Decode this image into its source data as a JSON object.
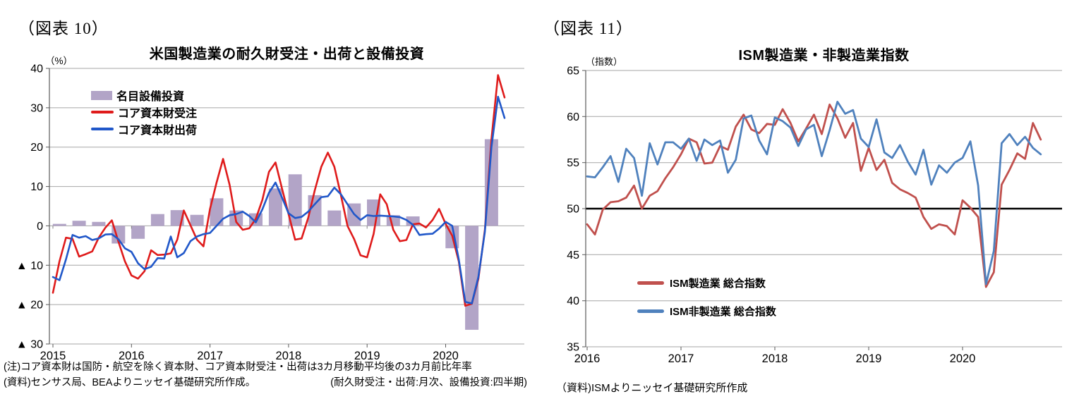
{
  "figure10": {
    "label": "（図表 10）",
    "note": "(注)コア資本財は国防・航空を除く資本財、コア資本財受注・出荷は3カ月移動平均後の3カ月前比年率",
    "source": "(資料)センサス局、BEAよりニッセイ基礎研究所作成。",
    "freq_note": "(耐久財受注・出荷:月次、設備投資:四半期)"
  },
  "figure11": {
    "label": "（図表 11）",
    "source": "（資料)ISMよりニッセイ基礎研究所作成"
  },
  "chart_data": [
    {
      "id": "us-durable-goods-capex",
      "type": "bar+line",
      "title": "米国製造業の耐久財受注・出荷と設備投資",
      "unit": "（%）",
      "ylim": [
        -30,
        40
      ],
      "y_tick_labels": [
        "40",
        "30",
        "20",
        "10",
        "0",
        "▲ 10",
        "▲ 20",
        "▲ 30"
      ],
      "x_tick_labels": [
        "2015",
        "2016",
        "2017",
        "2018",
        "2019",
        "2020"
      ],
      "x_start": "2015-01",
      "x_end": "2020-10",
      "grid": true,
      "legend_position": "upper-left-inside",
      "bars": {
        "name": "名目設備投資",
        "frequency": "quarterly",
        "color": "#b2a4c7",
        "values": [
          0.5,
          1.3,
          1.0,
          -4.5,
          -3.3,
          3.0,
          4.0,
          2.8,
          7.0,
          3.9,
          3.2,
          9.5,
          13.1,
          7.8,
          3.9,
          5.7,
          6.7,
          2.7,
          2.4,
          0.0,
          -5.7,
          -26.4,
          22.0
        ]
      },
      "series": [
        {
          "name": "コア資本財受注",
          "frequency": "monthly",
          "color": "#df1b1b",
          "values": [
            -17.0,
            -9.0,
            -3.0,
            -3.3,
            -7.8,
            -7.2,
            -6.5,
            -3.0,
            -0.5,
            1.4,
            -4.0,
            -9.0,
            -12.6,
            -13.4,
            -11.5,
            -6.2,
            -7.4,
            -7.3,
            -7.0,
            -3.5,
            3.9,
            0.2,
            -3.5,
            -5.2,
            4.3,
            11.0,
            17.0,
            10.4,
            1.0,
            -1.0,
            -0.6,
            1.8,
            6.6,
            13.7,
            16.1,
            9.5,
            3.0,
            -3.5,
            -3.2,
            2.0,
            9.0,
            15.0,
            18.6,
            15.0,
            7.8,
            0.0,
            -3.3,
            -7.5,
            -8.0,
            -2.0,
            8.0,
            5.5,
            -1.0,
            -3.9,
            -3.6,
            0.4,
            0.6,
            -0.4,
            1.5,
            4.3,
            0.5,
            -2.5,
            -9.0,
            -20.3,
            -19.8,
            -13.5,
            -1.0,
            22.0,
            38.3,
            32.6
          ]
        },
        {
          "name": "コア資本財出荷",
          "frequency": "monthly",
          "color": "#2057c9",
          "values": [
            -13.0,
            -13.8,
            -8.5,
            -2.3,
            -3.0,
            -2.6,
            -3.6,
            -3.2,
            -2.2,
            -2.1,
            -3.4,
            -5.7,
            -6.6,
            -9.5,
            -11.0,
            -10.4,
            -8.2,
            -8.3,
            -2.7,
            -8.0,
            -6.9,
            -3.9,
            -2.7,
            -2.1,
            -1.8,
            0.0,
            1.8,
            2.7,
            3.0,
            3.6,
            2.5,
            0.9,
            4.2,
            8.4,
            11.0,
            7.2,
            3.2,
            2.0,
            2.3,
            3.6,
            5.5,
            7.3,
            7.5,
            9.7,
            8.0,
            5.5,
            3.0,
            1.5,
            2.7,
            2.5,
            2.6,
            2.5,
            2.4,
            2.2,
            1.5,
            0.3,
            -2.3,
            -2.1,
            -2.0,
            -0.7,
            1.0,
            0.0,
            -8.5,
            -19.3,
            -19.7,
            -13.0,
            -1.5,
            20.0,
            32.8,
            27.4
          ]
        }
      ]
    },
    {
      "id": "ism-indices",
      "type": "line",
      "title": "ISM製造業・非製造業指数",
      "unit": "（指数）",
      "ylim": [
        35,
        65
      ],
      "y_tick_labels": [
        "65",
        "60",
        "55",
        "50",
        "45",
        "40",
        "35"
      ],
      "x_tick_labels": [
        "2016",
        "2017",
        "2018",
        "2019",
        "2020"
      ],
      "x_start": "2016-01",
      "x_end": "2020-11",
      "grid": true,
      "reference_line": 50,
      "legend_position": "lower-left-inside",
      "series": [
        {
          "name": "ISM製造業 総合指数",
          "frequency": "monthly",
          "color": "#c0504d",
          "values": [
            48.3,
            47.2,
            49.9,
            50.7,
            50.8,
            51.2,
            52.5,
            50.0,
            51.4,
            51.9,
            53.3,
            54.5,
            55.9,
            57.6,
            57.2,
            54.9,
            55.0,
            56.8,
            56.4,
            58.9,
            60.2,
            58.6,
            58.2,
            59.2,
            59.1,
            60.8,
            59.3,
            57.3,
            58.7,
            60.2,
            58.1,
            61.3,
            59.8,
            57.7,
            59.3,
            54.1,
            56.6,
            54.2,
            55.3,
            52.8,
            52.1,
            51.7,
            51.2,
            49.1,
            47.8,
            48.3,
            48.1,
            47.2,
            50.9,
            50.1,
            49.1,
            41.5,
            43.1,
            52.6,
            54.2,
            56.0,
            55.4,
            59.3,
            57.5
          ]
        },
        {
          "name": "ISM非製造業 総合指数",
          "frequency": "monthly",
          "color": "#4f81bd",
          "values": [
            53.5,
            53.4,
            54.5,
            55.7,
            52.9,
            56.5,
            55.5,
            51.4,
            57.1,
            54.8,
            57.2,
            57.2,
            56.5,
            57.6,
            55.2,
            57.5,
            56.9,
            57.4,
            53.9,
            55.3,
            59.8,
            60.1,
            57.4,
            55.9,
            59.9,
            59.5,
            58.8,
            56.8,
            58.6,
            59.1,
            55.7,
            58.5,
            61.6,
            60.3,
            60.7,
            57.6,
            56.7,
            59.7,
            56.1,
            55.5,
            56.9,
            55.1,
            53.7,
            56.4,
            52.6,
            54.7,
            53.9,
            55.0,
            55.5,
            57.3,
            52.5,
            41.8,
            45.4,
            57.1,
            58.1,
            56.9,
            57.8,
            56.6,
            55.9
          ]
        }
      ]
    }
  ]
}
